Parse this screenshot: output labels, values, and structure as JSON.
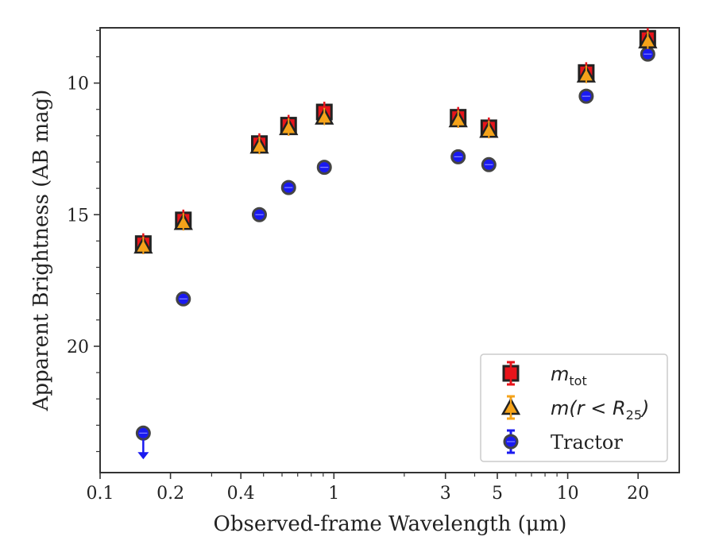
{
  "chart_data": {
    "type": "scatter",
    "title": "",
    "xlabel": "Observed-frame Wavelength (μm)",
    "ylabel": "Apparent Brightness (AB mag)",
    "xscale": "log",
    "xlim": [
      0.1,
      30
    ],
    "ylim": [
      24.8,
      7.9
    ],
    "y_inverted": true,
    "xticks": [
      0.1,
      0.2,
      0.4,
      1,
      3,
      5,
      10,
      20
    ],
    "xtick_labels": [
      "0.1",
      "0.2",
      "0.4",
      "1",
      "3",
      "5",
      "10",
      "20"
    ],
    "yticks": [
      10,
      15,
      20
    ],
    "ytick_labels": [
      "10",
      "15",
      "20"
    ],
    "grid": false,
    "legend_position": "lower-right",
    "series": [
      {
        "name": "m_tot",
        "legend_main": "m",
        "legend_sub": "tot",
        "marker": "square",
        "color": "#e8141b",
        "edgecolor": "#222222",
        "x": [
          0.153,
          0.227,
          0.48,
          0.64,
          0.91,
          3.4,
          4.6,
          12.0,
          22.0
        ],
        "y": [
          16.1,
          15.2,
          12.3,
          11.6,
          11.1,
          11.3,
          11.7,
          9.6,
          8.3
        ]
      },
      {
        "name": "m(r < R_25)",
        "legend_main": "m(r < R",
        "legend_sub": "25",
        "legend_tail": ")",
        "marker": "triangle",
        "color": "#f5a31a",
        "edgecolor": "#222222",
        "x": [
          0.153,
          0.227,
          0.48,
          0.64,
          0.91,
          3.4,
          4.6,
          12.0,
          22.0
        ],
        "y": [
          16.2,
          15.3,
          12.4,
          11.7,
          11.3,
          11.4,
          11.8,
          9.7,
          8.4
        ]
      },
      {
        "name": "Tractor",
        "legend_main": "Tractor",
        "marker": "circle",
        "color": "#1a1af0",
        "edgecolor": "#444444",
        "x": [
          0.153,
          0.227,
          0.48,
          0.64,
          0.91,
          3.4,
          4.6,
          12.0,
          22.0
        ],
        "y": [
          23.3,
          18.2,
          15.0,
          13.97,
          13.2,
          12.8,
          13.1,
          10.5,
          8.9
        ],
        "upper_limit_x": [
          0.153
        ]
      }
    ]
  }
}
